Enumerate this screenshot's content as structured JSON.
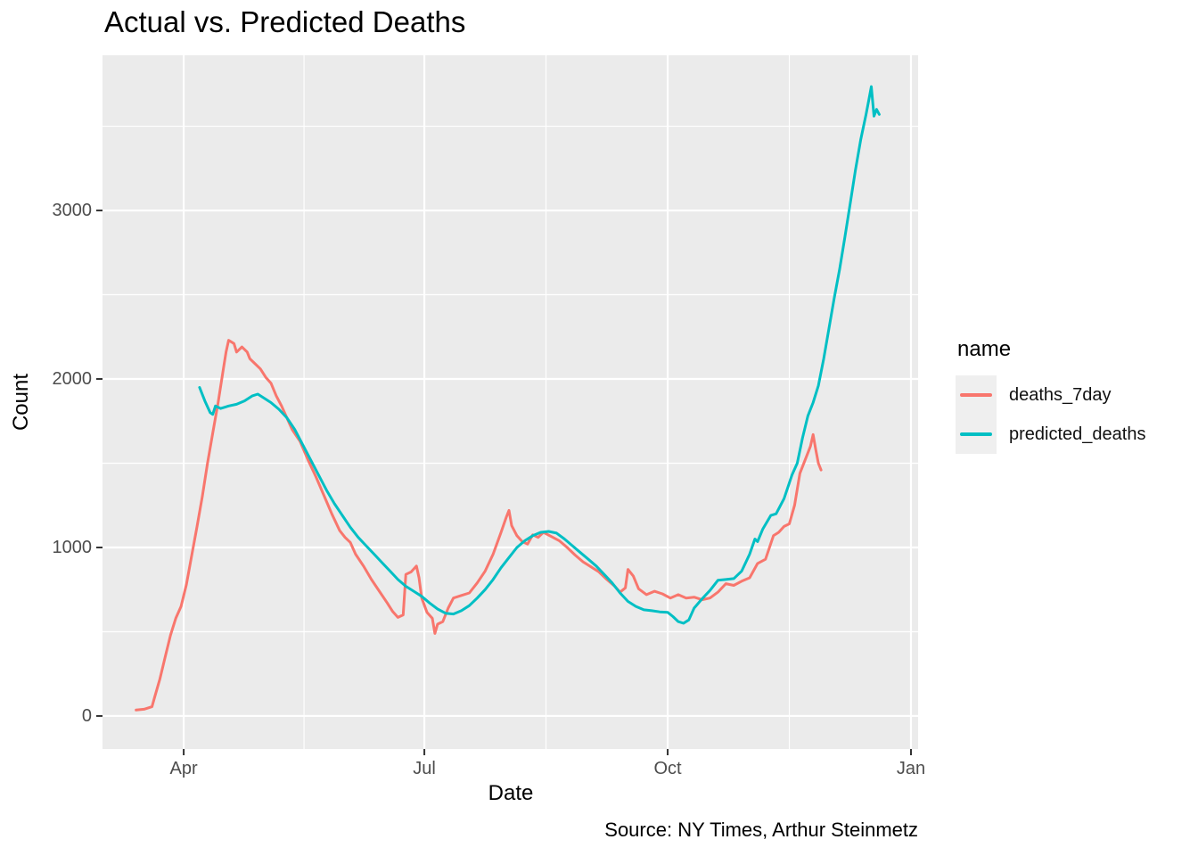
{
  "page": {
    "title": "Actual vs. Predicted Deaths",
    "caption": "Source: NY Times, Arthur Steinmetz"
  },
  "axes": {
    "x_title": "Date",
    "y_title": "Count"
  },
  "legend": {
    "title": "name"
  },
  "colors": {
    "panel_bg": "#EBEBEB",
    "grid": "#FFFFFF",
    "tick_mark": "#333333",
    "axis_text": "#4D4D4D",
    "text": "#000000",
    "legend_key_bg": "#EFEFEF",
    "deaths_7day": "#F8766D",
    "predicted_deaths": "#00BFC4"
  },
  "chart_data": {
    "type": "line",
    "title": "Actual vs. Predicted Deaths",
    "xlabel": "Date",
    "ylabel": "Count",
    "x_unit": "days_since_2020_01_01",
    "xlim": [
      60.3,
      368.7
    ],
    "ylim": [
      -196,
      3921
    ],
    "grid": true,
    "legend_position": "right",
    "x_major_ticks": [
      {
        "day": 91,
        "label": "Apr"
      },
      {
        "day": 182,
        "label": "Jul"
      },
      {
        "day": 274,
        "label": "Oct"
      },
      {
        "day": 366,
        "label": "Jan"
      }
    ],
    "x_minor_ticks": [
      136.5,
      228,
      320
    ],
    "y_major_ticks": [
      {
        "value": 0,
        "label": "0"
      },
      {
        "value": 1000,
        "label": "1000"
      },
      {
        "value": 2000,
        "label": "2000"
      },
      {
        "value": 3000,
        "label": "3000"
      }
    ],
    "y_minor_ticks": [
      500,
      1500,
      2500,
      3500
    ],
    "series": [
      {
        "name": "deaths_7day",
        "color": "#F8766D",
        "points": [
          [
            73,
            35
          ],
          [
            76,
            40
          ],
          [
            79,
            55
          ],
          [
            80,
            110
          ],
          [
            82,
            220
          ],
          [
            84,
            350
          ],
          [
            86,
            480
          ],
          [
            88,
            580
          ],
          [
            90,
            650
          ],
          [
            92,
            780
          ],
          [
            94,
            950
          ],
          [
            96,
            1120
          ],
          [
            98,
            1300
          ],
          [
            100,
            1500
          ],
          [
            102,
            1680
          ],
          [
            104,
            1860
          ],
          [
            106,
            2060
          ],
          [
            107,
            2160
          ],
          [
            108,
            2230
          ],
          [
            110,
            2210
          ],
          [
            111,
            2160
          ],
          [
            113,
            2190
          ],
          [
            115,
            2160
          ],
          [
            116,
            2120
          ],
          [
            118,
            2090
          ],
          [
            120,
            2060
          ],
          [
            122,
            2010
          ],
          [
            124,
            1975
          ],
          [
            126,
            1900
          ],
          [
            128,
            1840
          ],
          [
            130,
            1770
          ],
          [
            132,
            1700
          ],
          [
            135,
            1630
          ],
          [
            138,
            1520
          ],
          [
            141,
            1420
          ],
          [
            144,
            1310
          ],
          [
            147,
            1200
          ],
          [
            150,
            1100
          ],
          [
            152,
            1060
          ],
          [
            154,
            1030
          ],
          [
            156,
            960
          ],
          [
            159,
            890
          ],
          [
            162,
            810
          ],
          [
            165,
            740
          ],
          [
            168,
            670
          ],
          [
            170,
            620
          ],
          [
            172,
            585
          ],
          [
            174,
            600
          ],
          [
            175,
            840
          ],
          [
            177,
            855
          ],
          [
            179,
            890
          ],
          [
            180,
            820
          ],
          [
            181,
            700
          ],
          [
            183,
            615
          ],
          [
            185,
            580
          ],
          [
            186,
            490
          ],
          [
            187,
            545
          ],
          [
            189,
            560
          ],
          [
            191,
            640
          ],
          [
            193,
            700
          ],
          [
            196,
            715
          ],
          [
            199,
            730
          ],
          [
            202,
            790
          ],
          [
            205,
            860
          ],
          [
            208,
            960
          ],
          [
            211,
            1090
          ],
          [
            213,
            1180
          ],
          [
            214,
            1220
          ],
          [
            215,
            1130
          ],
          [
            217,
            1070
          ],
          [
            219,
            1035
          ],
          [
            221,
            1020
          ],
          [
            223,
            1075
          ],
          [
            225,
            1060
          ],
          [
            227,
            1090
          ],
          [
            230,
            1065
          ],
          [
            233,
            1040
          ],
          [
            236,
            1000
          ],
          [
            239,
            955
          ],
          [
            242,
            915
          ],
          [
            245,
            885
          ],
          [
            248,
            855
          ],
          [
            251,
            810
          ],
          [
            254,
            770
          ],
          [
            256,
            735
          ],
          [
            258,
            760
          ],
          [
            259,
            870
          ],
          [
            261,
            830
          ],
          [
            263,
            755
          ],
          [
            266,
            720
          ],
          [
            269,
            740
          ],
          [
            272,
            725
          ],
          [
            275,
            700
          ],
          [
            278,
            720
          ],
          [
            281,
            700
          ],
          [
            284,
            705
          ],
          [
            287,
            690
          ],
          [
            290,
            700
          ],
          [
            293,
            735
          ],
          [
            296,
            785
          ],
          [
            299,
            775
          ],
          [
            302,
            800
          ],
          [
            305,
            820
          ],
          [
            308,
            905
          ],
          [
            311,
            930
          ],
          [
            314,
            1070
          ],
          [
            316,
            1090
          ],
          [
            318,
            1125
          ],
          [
            320,
            1140
          ],
          [
            322,
            1250
          ],
          [
            324,
            1440
          ],
          [
            326,
            1520
          ],
          [
            328,
            1600
          ],
          [
            329,
            1670
          ],
          [
            330,
            1580
          ],
          [
            331,
            1500
          ],
          [
            332,
            1460
          ]
        ]
      },
      {
        "name": "predicted_deaths",
        "color": "#00BFC4",
        "points": [
          [
            97,
            1950
          ],
          [
            99,
            1870
          ],
          [
            101,
            1800
          ],
          [
            102,
            1790
          ],
          [
            103,
            1840
          ],
          [
            105,
            1825
          ],
          [
            108,
            1840
          ],
          [
            111,
            1850
          ],
          [
            114,
            1870
          ],
          [
            117,
            1900
          ],
          [
            119,
            1910
          ],
          [
            121,
            1890
          ],
          [
            124,
            1860
          ],
          [
            127,
            1820
          ],
          [
            130,
            1770
          ],
          [
            133,
            1700
          ],
          [
            136,
            1610
          ],
          [
            139,
            1520
          ],
          [
            142,
            1430
          ],
          [
            145,
            1340
          ],
          [
            148,
            1260
          ],
          [
            151,
            1190
          ],
          [
            154,
            1120
          ],
          [
            157,
            1060
          ],
          [
            160,
            1010
          ],
          [
            163,
            960
          ],
          [
            166,
            910
          ],
          [
            169,
            860
          ],
          [
            172,
            810
          ],
          [
            175,
            770
          ],
          [
            178,
            740
          ],
          [
            181,
            710
          ],
          [
            184,
            670
          ],
          [
            187,
            635
          ],
          [
            190,
            610
          ],
          [
            193,
            605
          ],
          [
            196,
            625
          ],
          [
            199,
            655
          ],
          [
            202,
            700
          ],
          [
            205,
            750
          ],
          [
            208,
            810
          ],
          [
            211,
            880
          ],
          [
            214,
            940
          ],
          [
            217,
            1000
          ],
          [
            220,
            1040
          ],
          [
            223,
            1070
          ],
          [
            226,
            1090
          ],
          [
            229,
            1095
          ],
          [
            232,
            1085
          ],
          [
            235,
            1050
          ],
          [
            238,
            1010
          ],
          [
            241,
            970
          ],
          [
            244,
            930
          ],
          [
            247,
            890
          ],
          [
            250,
            840
          ],
          [
            253,
            790
          ],
          [
            256,
            730
          ],
          [
            259,
            680
          ],
          [
            262,
            650
          ],
          [
            265,
            630
          ],
          [
            268,
            625
          ],
          [
            271,
            618
          ],
          [
            274,
            615
          ],
          [
            276,
            590
          ],
          [
            278,
            560
          ],
          [
            280,
            550
          ],
          [
            282,
            570
          ],
          [
            284,
            640
          ],
          [
            287,
            695
          ],
          [
            290,
            745
          ],
          [
            293,
            805
          ],
          [
            296,
            810
          ],
          [
            299,
            815
          ],
          [
            302,
            860
          ],
          [
            305,
            960
          ],
          [
            307,
            1050
          ],
          [
            308,
            1035
          ],
          [
            310,
            1110
          ],
          [
            313,
            1190
          ],
          [
            315,
            1200
          ],
          [
            318,
            1290
          ],
          [
            321,
            1430
          ],
          [
            323,
            1500
          ],
          [
            325,
            1650
          ],
          [
            327,
            1780
          ],
          [
            329,
            1860
          ],
          [
            331,
            1960
          ],
          [
            333,
            2120
          ],
          [
            335,
            2300
          ],
          [
            337,
            2480
          ],
          [
            339,
            2650
          ],
          [
            341,
            2840
          ],
          [
            343,
            3040
          ],
          [
            345,
            3240
          ],
          [
            347,
            3420
          ],
          [
            349,
            3570
          ],
          [
            350,
            3650
          ],
          [
            351,
            3735
          ],
          [
            352,
            3560
          ],
          [
            353,
            3600
          ],
          [
            354,
            3570
          ]
        ]
      }
    ]
  }
}
